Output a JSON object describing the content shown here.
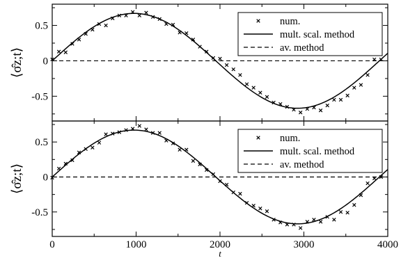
{
  "chart_data": [
    {
      "type": "line",
      "title": "",
      "xlabel": "t",
      "ylabel": "⟨σ̂z;t⟩",
      "xlim": [
        0,
        4000
      ],
      "ylim": [
        -0.85,
        0.8
      ],
      "xticks": [
        0,
        1000,
        2000,
        3000,
        4000
      ],
      "xtick_labels": [
        "0",
        "1000",
        "2000",
        "3000",
        "4000"
      ],
      "yticks": [
        -0.5,
        0,
        0.5
      ],
      "ytick_labels": [
        "-0.5",
        "0",
        "0.5"
      ],
      "grid": false,
      "legend_position": "top-right",
      "series": [
        {
          "name": "num.",
          "style": "markers-x",
          "x": [
            0,
            80,
            160,
            240,
            320,
            400,
            480,
            560,
            640,
            720,
            800,
            880,
            960,
            1040,
            1120,
            1200,
            1280,
            1360,
            1440,
            1520,
            1600,
            1680,
            1760,
            1840,
            1920,
            2000,
            2080,
            2160,
            2240,
            2320,
            2400,
            2480,
            2560,
            2640,
            2720,
            2800,
            2880,
            2960,
            3040,
            3120,
            3200,
            3280,
            3360,
            3440,
            3520,
            3600,
            3680,
            3760,
            3840,
            3920
          ],
          "y": [
            0.02,
            0.13,
            0.12,
            0.24,
            0.3,
            0.38,
            0.44,
            0.52,
            0.5,
            0.6,
            0.64,
            0.64,
            0.69,
            0.64,
            0.68,
            0.62,
            0.59,
            0.52,
            0.51,
            0.4,
            0.39,
            0.3,
            0.2,
            0.13,
            0.04,
            0.03,
            -0.06,
            -0.12,
            -0.2,
            -0.33,
            -0.38,
            -0.45,
            -0.51,
            -0.59,
            -0.61,
            -0.65,
            -0.69,
            -0.73,
            -0.68,
            -0.66,
            -0.7,
            -0.63,
            -0.55,
            -0.55,
            -0.49,
            -0.38,
            -0.34,
            -0.2,
            0.02,
            0.02
          ]
        },
        {
          "name": "mult. scal. method",
          "style": "solid",
          "amplitude": 0.67,
          "period": 3900,
          "x_start": 0,
          "x_end": 4000
        },
        {
          "name": "av. method",
          "style": "dashed",
          "constant": 0
        }
      ]
    },
    {
      "type": "line",
      "title": "",
      "xlabel": "t",
      "ylabel": "⟨σ̂z;t⟩",
      "xlim": [
        0,
        4000
      ],
      "ylim": [
        -0.85,
        0.8
      ],
      "xticks": [
        0,
        1000,
        2000,
        3000,
        4000
      ],
      "xtick_labels": [
        "0",
        "1000",
        "2000",
        "3000",
        "4000"
      ],
      "yticks": [
        -0.5,
        0,
        0.5
      ],
      "ytick_labels": [
        "-0.5",
        "0",
        "0.5"
      ],
      "grid": false,
      "legend_position": "top-right",
      "series": [
        {
          "name": "num.",
          "style": "markers-x",
          "x": [
            0,
            80,
            160,
            240,
            320,
            400,
            480,
            560,
            640,
            720,
            800,
            880,
            960,
            1040,
            1120,
            1200,
            1280,
            1360,
            1440,
            1520,
            1600,
            1680,
            1760,
            1840,
            1920,
            2000,
            2080,
            2160,
            2240,
            2320,
            2400,
            2480,
            2560,
            2640,
            2720,
            2800,
            2880,
            2960,
            3040,
            3120,
            3200,
            3280,
            3360,
            3440,
            3520,
            3600,
            3680,
            3760,
            3840,
            3920
          ],
          "y": [
            -0.01,
            0.12,
            0.19,
            0.24,
            0.35,
            0.4,
            0.42,
            0.49,
            0.61,
            0.62,
            0.64,
            0.67,
            0.69,
            0.73,
            0.68,
            0.63,
            0.63,
            0.52,
            0.48,
            0.39,
            0.39,
            0.23,
            0.18,
            0.1,
            0.04,
            -0.06,
            -0.11,
            -0.22,
            -0.24,
            -0.37,
            -0.41,
            -0.45,
            -0.49,
            -0.61,
            -0.65,
            -0.68,
            -0.68,
            -0.73,
            -0.64,
            -0.61,
            -0.64,
            -0.57,
            -0.61,
            -0.5,
            -0.51,
            -0.4,
            -0.26,
            -0.09,
            -0.02,
            0.0
          ]
        },
        {
          "name": "mult. scal. method",
          "style": "solid",
          "amplitude": 0.67,
          "period": 3900,
          "x_start": 0,
          "x_end": 4000
        },
        {
          "name": "av. method",
          "style": "dashed",
          "constant": 0
        }
      ]
    }
  ]
}
